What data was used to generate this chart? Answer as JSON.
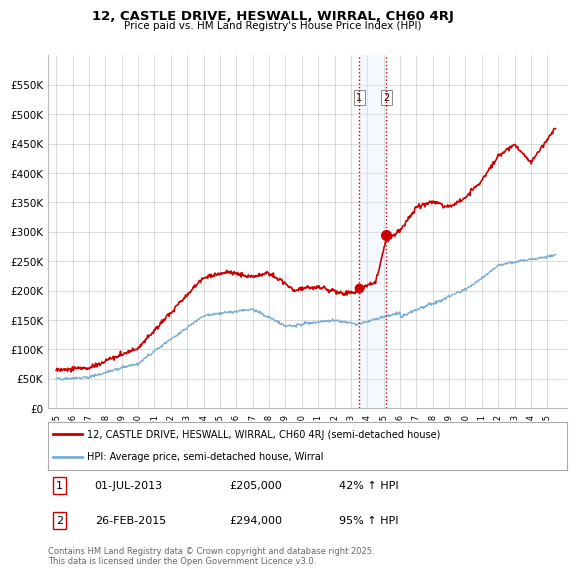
{
  "title": "12, CASTLE DRIVE, HESWALL, WIRRAL, CH60 4RJ",
  "subtitle": "Price paid vs. HM Land Registry's House Price Index (HPI)",
  "legend_line1": "12, CASTLE DRIVE, HESWALL, WIRRAL, CH60 4RJ (semi-detached house)",
  "legend_line2": "HPI: Average price, semi-detached house, Wirral",
  "footer": "Contains HM Land Registry data © Crown copyright and database right 2025.\nThis data is licensed under the Open Government Licence v3.0.",
  "sale1_label": "1",
  "sale1_date": "01-JUL-2013",
  "sale1_price": "£205,000",
  "sale1_hpi": "42% ↑ HPI",
  "sale2_label": "2",
  "sale2_date": "26-FEB-2015",
  "sale2_price": "£294,000",
  "sale2_hpi": "95% ↑ HPI",
  "property_color": "#cc0000",
  "hpi_color": "#7aadd4",
  "vertical_line_color": "#cc0000",
  "highlight_box_color": "#ddeeff",
  "ylim_min": 0,
  "ylim_max": 600000,
  "yticks": [
    0,
    50000,
    100000,
    150000,
    200000,
    250000,
    300000,
    350000,
    400000,
    450000,
    500000,
    550000
  ],
  "ytick_labels": [
    "£0",
    "£50K",
    "£100K",
    "£150K",
    "£200K",
    "£250K",
    "£300K",
    "£350K",
    "£400K",
    "£450K",
    "£500K",
    "£550K"
  ],
  "sale1_year": 2013.5,
  "sale1_value": 205000,
  "sale2_year": 2015.15,
  "sale2_value": 294000,
  "background_color": "#ffffff",
  "grid_color": "#cccccc"
}
